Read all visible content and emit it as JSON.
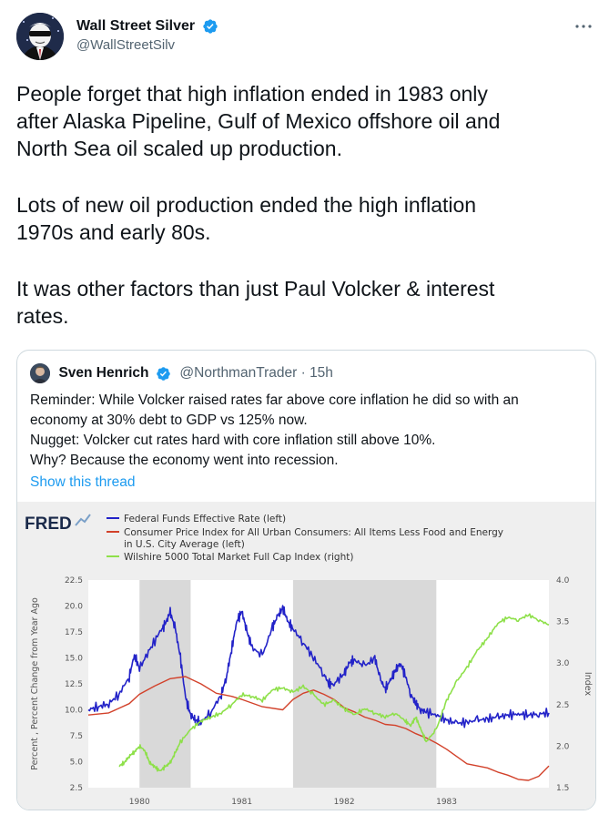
{
  "tweet": {
    "author_name": "Wall Street Silver",
    "author_handle": "@WallStreetSilv",
    "paragraphs": [
      [
        "People forget that high inflation ended in 1983 only",
        "after Alaska Pipeline, Gulf of Mexico offshore oil and",
        "North Sea oil scaled up production."
      ],
      [
        "Lots of new oil production ended the high inflation",
        "1970s and early 80s."
      ],
      [
        "It was other factors than just Paul Volcker & interest",
        "rates."
      ]
    ]
  },
  "icons": {
    "verified": "verified-badge-icon",
    "more": "more-options-icon"
  },
  "colors": {
    "verified_blue": "#1d9bf0",
    "link_blue": "#1d9bf0",
    "fed_funds": "#2323c8",
    "cpi": "#d2412a",
    "wilshire": "#8ee04a",
    "recession_shade": "#d9d9d9"
  },
  "quote": {
    "author_name": "Sven Henrich",
    "author_handle": "@NorthmanTrader · 15h",
    "lines": [
      "Reminder: While Volcker raised rates far above core inflation he did so with an",
      "economy at 30% debt to GDP  vs 125% now.",
      "Nugget: Volcker cut rates hard with core inflation still above 10%.",
      "Why? Because the economy went into recession."
    ],
    "show_thread": "Show this thread"
  },
  "chart_data": {
    "type": "line",
    "brand": "FRED",
    "legend": [
      "Federal Funds Effective Rate (left)",
      "Consumer Price Index for All Urban Consumers: All Items Less Food and Energy",
      "in U.S. City Average (left)",
      "Wilshire 5000 Total Market Full Cap Index (right)"
    ],
    "ylabel": "Percent , Percent Change from Year Ago",
    "y2label": "Index",
    "ylim": [
      2.5,
      22.5
    ],
    "y2lim": [
      1.5,
      4.0
    ],
    "xlim": [
      1979.5,
      1984.0
    ],
    "yticks": [
      "22.5",
      "20.0",
      "17.5",
      "15.0",
      "12.5",
      "10.0",
      "7.5",
      "5.0",
      "2.5"
    ],
    "y2ticks": [
      "4.0",
      "3.5",
      "3.0",
      "2.5",
      "2.0",
      "1.5"
    ],
    "xticks": [
      {
        "label": "1980",
        "x": 1980
      },
      {
        "label": "1981",
        "x": 1981
      },
      {
        "label": "1982",
        "x": 1982
      },
      {
        "label": "1983",
        "x": 1983
      }
    ],
    "recessions": [
      [
        1980.0,
        1980.5
      ],
      [
        1981.5,
        1982.9
      ]
    ],
    "series": [
      {
        "name": "Federal Funds Effective Rate (left)",
        "axis": "left",
        "x": [
          1979.5,
          1979.6,
          1979.7,
          1979.8,
          1979.9,
          1979.95,
          1980.0,
          1980.1,
          1980.2,
          1980.25,
          1980.3,
          1980.35,
          1980.4,
          1980.45,
          1980.5,
          1980.55,
          1980.6,
          1980.7,
          1980.8,
          1980.85,
          1980.9,
          1980.95,
          1981.0,
          1981.05,
          1981.1,
          1981.2,
          1981.3,
          1981.35,
          1981.4,
          1981.45,
          1981.5,
          1981.6,
          1981.7,
          1981.8,
          1981.85,
          1981.9,
          1982.0,
          1982.05,
          1982.1,
          1982.2,
          1982.3,
          1982.35,
          1982.4,
          1982.45,
          1982.5,
          1982.55,
          1982.6,
          1982.65,
          1982.7,
          1982.75,
          1982.8,
          1982.9,
          1983.0,
          1983.1,
          1983.2,
          1983.3,
          1983.4,
          1983.5,
          1983.6,
          1983.7,
          1983.8,
          1983.9,
          1984.0
        ],
        "values": [
          10.0,
          10.3,
          10.6,
          11.5,
          13.2,
          15.3,
          14.0,
          15.8,
          17.5,
          18.2,
          19.4,
          17.8,
          15.0,
          11.2,
          9.5,
          9.0,
          8.8,
          9.8,
          11.5,
          13.2,
          15.8,
          18.5,
          19.5,
          17.5,
          16.0,
          15.2,
          18.0,
          19.0,
          19.8,
          18.5,
          17.8,
          16.5,
          15.0,
          13.5,
          12.5,
          12.5,
          13.5,
          14.5,
          14.8,
          14.2,
          15.0,
          13.0,
          12.0,
          12.8,
          13.8,
          14.5,
          13.2,
          11.5,
          10.6,
          10.0,
          9.8,
          9.5,
          9.0,
          8.7,
          8.8,
          9.0,
          9.1,
          9.3,
          9.5,
          9.6,
          9.5,
          9.6,
          9.7
        ]
      },
      {
        "name": "Consumer Price Index for All Urban Consumers: All Items Less Food and Energy in U.S. City Average (left)",
        "axis": "left",
        "x": [
          1979.5,
          1979.7,
          1979.9,
          1980.0,
          1980.15,
          1980.3,
          1980.45,
          1980.6,
          1980.75,
          1980.9,
          1981.0,
          1981.2,
          1981.4,
          1981.5,
          1981.6,
          1981.7,
          1981.8,
          1981.9,
          1982.0,
          1982.1,
          1982.2,
          1982.3,
          1982.4,
          1982.5,
          1982.6,
          1982.7,
          1982.8,
          1982.9,
          1983.0,
          1983.1,
          1983.2,
          1983.3,
          1983.4,
          1983.5,
          1983.6,
          1983.7,
          1983.8,
          1983.9,
          1984.0
        ],
        "values": [
          9.5,
          9.7,
          10.6,
          11.5,
          12.3,
          13.0,
          13.2,
          12.5,
          11.6,
          11.3,
          11.0,
          10.3,
          10.0,
          11.0,
          11.6,
          11.9,
          11.5,
          11.0,
          10.2,
          9.8,
          9.3,
          9.0,
          8.6,
          8.5,
          8.2,
          7.7,
          7.3,
          6.8,
          6.2,
          5.5,
          4.8,
          4.6,
          4.4,
          4.0,
          3.7,
          3.3,
          3.2,
          3.6,
          4.6
        ]
      },
      {
        "name": "Wilshire 5000 Total Market Full Cap Index (right)",
        "axis": "right",
        "x": [
          1979.8,
          1979.85,
          1979.9,
          1979.95,
          1980.0,
          1980.05,
          1980.1,
          1980.15,
          1980.2,
          1980.25,
          1980.3,
          1980.35,
          1980.4,
          1980.5,
          1980.6,
          1980.7,
          1980.8,
          1980.9,
          1981.0,
          1981.1,
          1981.2,
          1981.3,
          1981.4,
          1981.5,
          1981.6,
          1981.7,
          1981.8,
          1981.9,
          1982.0,
          1982.1,
          1982.2,
          1982.3,
          1982.4,
          1982.5,
          1982.6,
          1982.65,
          1982.7,
          1982.75,
          1982.8,
          1982.9,
          1983.0,
          1983.1,
          1983.2,
          1983.3,
          1983.4,
          1983.5,
          1983.6,
          1983.7,
          1983.8,
          1983.9,
          1984.0
        ],
        "values": [
          1.76,
          1.8,
          1.88,
          1.93,
          2.0,
          1.95,
          1.8,
          1.75,
          1.7,
          1.75,
          1.8,
          1.92,
          2.05,
          2.2,
          2.3,
          2.35,
          2.4,
          2.5,
          2.62,
          2.6,
          2.55,
          2.68,
          2.7,
          2.65,
          2.72,
          2.62,
          2.5,
          2.55,
          2.45,
          2.38,
          2.45,
          2.4,
          2.35,
          2.4,
          2.3,
          2.25,
          2.35,
          2.2,
          2.05,
          2.2,
          2.55,
          2.78,
          2.95,
          3.15,
          3.3,
          3.48,
          3.55,
          3.52,
          3.58,
          3.52,
          3.46
        ]
      }
    ]
  }
}
